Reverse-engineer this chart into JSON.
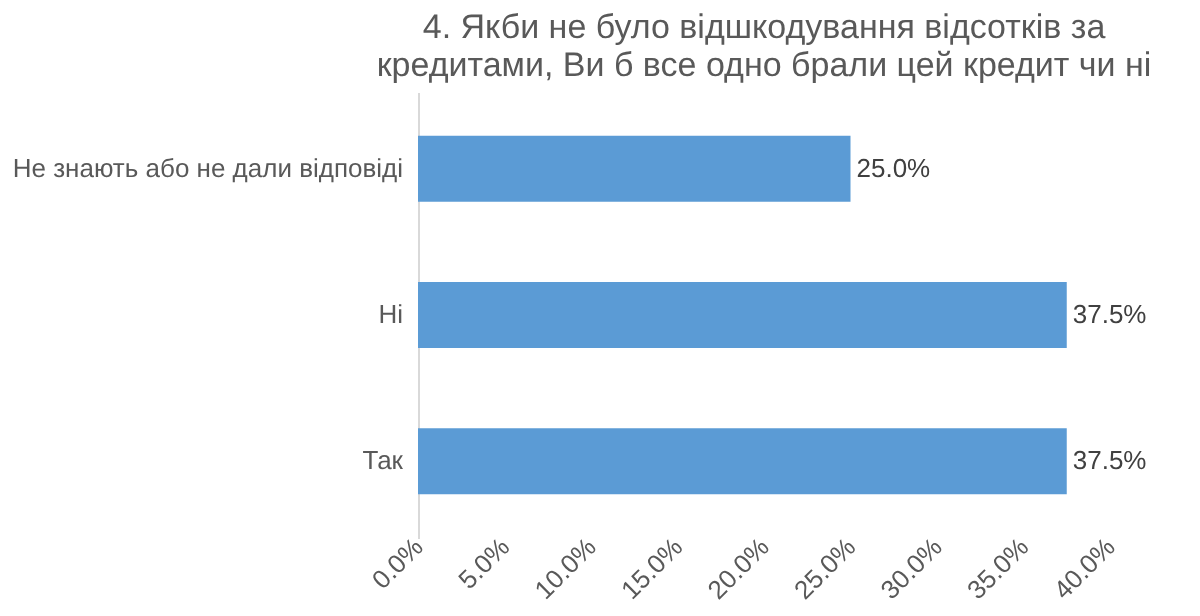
{
  "chart_data": {
    "type": "bar",
    "orientation": "horizontal",
    "title": "4. Якби не було відшкодування відсотків за кредитами, Ви б все одно брали цей кредит чи ні",
    "categories": [
      "Не знають або не дали відповіді",
      "Ні",
      "Так"
    ],
    "values": [
      25.0,
      37.5,
      37.5
    ],
    "color": "#5b9bd5",
    "value_labels": [
      "25.0%",
      "37.5%",
      "37.5%"
    ],
    "xlim": [
      0,
      40
    ],
    "xticks": [
      {
        "value": 0,
        "label": "0.0%"
      },
      {
        "value": 5,
        "label": "5.0%"
      },
      {
        "value": 10,
        "label": "10.0%"
      },
      {
        "value": 15,
        "label": "15.0%"
      },
      {
        "value": 20,
        "label": "20.0%"
      },
      {
        "value": 25,
        "label": "25.0%"
      },
      {
        "value": 30,
        "label": "30.0%"
      },
      {
        "value": 35,
        "label": "35.0%"
      },
      {
        "value": 40,
        "label": "40.0%"
      }
    ],
    "grid": false
  }
}
